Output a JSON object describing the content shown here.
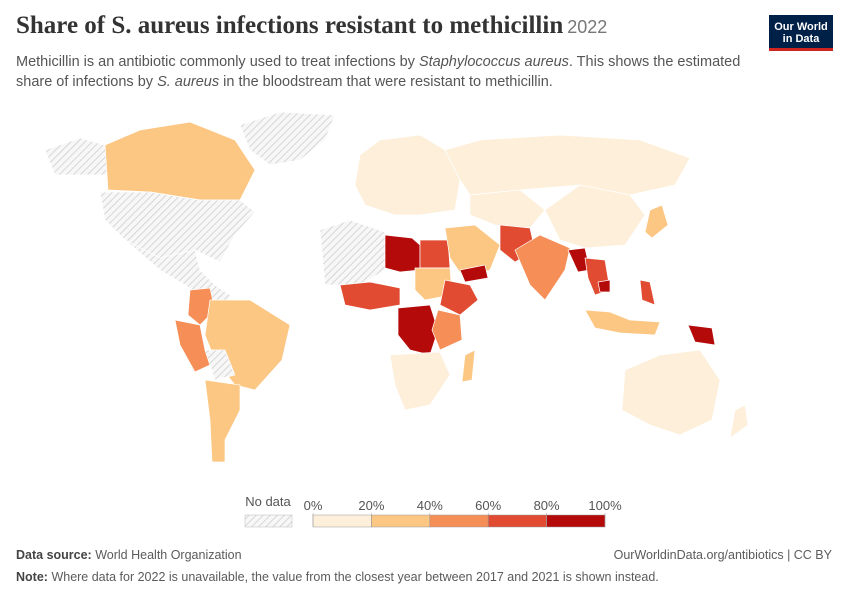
{
  "header": {
    "title": "Share of S. aureus infections resistant to methicillin",
    "year": "2022",
    "subtitle": [
      "Methicillin is an antibiotic commonly used to treat infections by ",
      "Staphylococcus aureus",
      ". This shows the estimated share of infections by ",
      "S. aureus",
      " in the bloodstream that were resistant to methicillin."
    ],
    "logo": [
      "Our World",
      "in Data"
    ]
  },
  "legend": {
    "no_data": "No data",
    "ticks": [
      {
        "value": 0,
        "label": "0%"
      },
      {
        "value": 20,
        "label": "20%"
      },
      {
        "value": 40,
        "label": "40%"
      },
      {
        "value": 60,
        "label": "60%"
      },
      {
        "value": 80,
        "label": "80%"
      },
      {
        "value": 100,
        "label": "100%"
      }
    ],
    "colors": [
      "#fdefd9",
      "#fcc683",
      "#f68e57",
      "#e04b32",
      "#b50a0a"
    ]
  },
  "footer": {
    "source_label": "Data source:",
    "source": "World Health Organization",
    "url": "OurWorldinData.org/antibiotics | CC BY",
    "note_label": "Note:",
    "note": "Where data for 2022 is unavailable, the value from the closest year between 2017 and 2021 is shown instead."
  }
}
